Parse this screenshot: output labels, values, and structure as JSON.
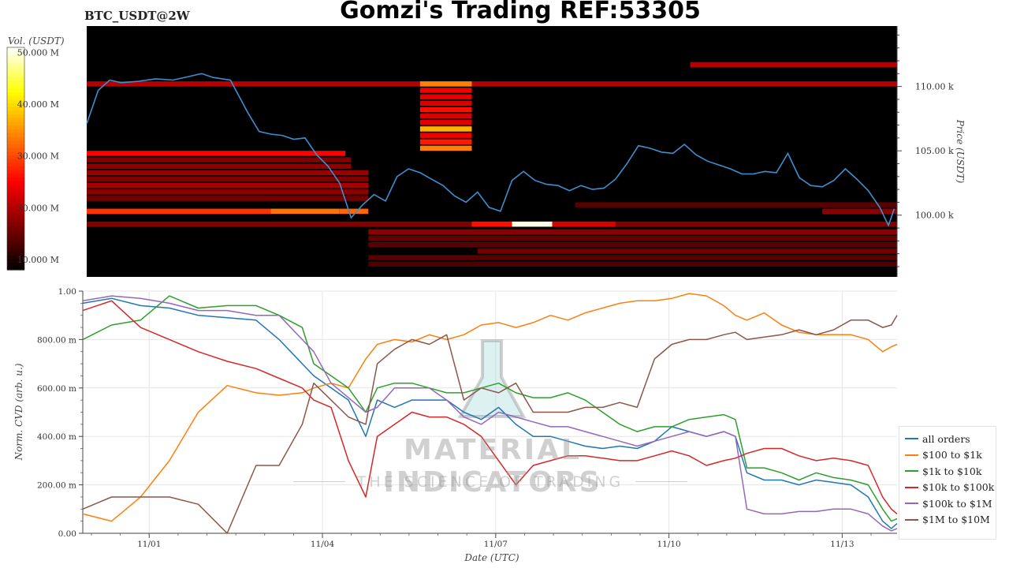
{
  "header": {
    "pair": "BTC_USDT@2W",
    "title": "Gomzi's Trading REF:53305"
  },
  "watermark": {
    "title": "MATERIAL INDICATORS",
    "subtitle": "THE SCIENCE OF TRADING"
  },
  "chart_data": [
    {
      "type": "heatmap",
      "title": "Gomzi's Trading REF:53305",
      "ylabel": "Price (USDT)",
      "colorbar_label": "Vol. (USDT)",
      "colorbar_ticks": [
        "10.000 M",
        "20.000 M",
        "30.000 M",
        "40.000 M",
        "50.000 M"
      ],
      "colorbar_range": [
        8000000,
        51000000
      ],
      "price_ticks": [
        "100.00 k",
        "105.00 k",
        "110.00 k"
      ],
      "y_range": [
        95200,
        114700
      ],
      "x_range": [
        0,
        14.1
      ],
      "price_line": {
        "color": "#3d8fd0",
        "x": [
          0,
          0.2,
          0.4,
          0.6,
          0.9,
          1.2,
          1.5,
          1.8,
          2.0,
          2.2,
          2.5,
          2.8,
          3.0,
          3.2,
          3.4,
          3.6,
          3.8,
          4.0,
          4.2,
          4.4,
          4.6,
          4.8,
          5.0,
          5.2,
          5.4,
          5.6,
          5.8,
          6.0,
          6.2,
          6.4,
          6.6,
          6.8,
          7.0,
          7.2,
          7.4,
          7.6,
          7.8,
          8.0,
          8.2,
          8.4,
          8.6,
          8.8,
          9.0,
          9.2,
          9.4,
          9.6,
          9.8,
          10.0,
          10.2,
          10.4,
          10.6,
          10.8,
          11.0,
          11.2,
          11.4,
          11.6,
          11.8,
          12.0,
          12.2,
          12.4,
          12.6,
          12.8,
          13.0,
          13.2,
          13.4,
          13.6,
          13.8,
          13.95,
          14.05
        ],
        "y": [
          107100,
          109700,
          110500,
          110300,
          110400,
          110600,
          110500,
          110800,
          111000,
          110700,
          110500,
          108000,
          106500,
          106300,
          106200,
          105900,
          106000,
          104700,
          103800,
          102500,
          99800,
          100800,
          101600,
          101100,
          103000,
          103600,
          103300,
          102800,
          102300,
          101500,
          101000,
          101800,
          100600,
          100300,
          102700,
          103400,
          102700,
          102400,
          102300,
          101900,
          102300,
          102000,
          102100,
          102800,
          104000,
          105400,
          105200,
          104900,
          104800,
          105500,
          104700,
          104200,
          103900,
          103600,
          103200,
          103200,
          103400,
          103300,
          104800,
          102900,
          102300,
          102200,
          102700,
          103600,
          102800,
          101900,
          100600,
          99200,
          100500
        ]
      },
      "bands": [
        {
          "price": 110200,
          "x0": 0,
          "x1": 14.1,
          "level": 0.28
        },
        {
          "price": 110200,
          "x0": 5.8,
          "x1": 6.7,
          "level": 0.6
        },
        {
          "price": 111700,
          "x0": 10.5,
          "x1": 14.1,
          "level": 0.28
        },
        {
          "price": 109700,
          "x0": 5.8,
          "x1": 6.7,
          "level": 0.38
        },
        {
          "price": 109200,
          "x0": 5.8,
          "x1": 6.7,
          "level": 0.36
        },
        {
          "price": 108700,
          "x0": 5.8,
          "x1": 6.7,
          "level": 0.34
        },
        {
          "price": 108200,
          "x0": 5.8,
          "x1": 6.7,
          "level": 0.42
        },
        {
          "price": 107700,
          "x0": 5.8,
          "x1": 6.7,
          "level": 0.34
        },
        {
          "price": 107200,
          "x0": 5.8,
          "x1": 6.7,
          "level": 0.36
        },
        {
          "price": 106700,
          "x0": 5.8,
          "x1": 6.7,
          "level": 0.68
        },
        {
          "price": 106200,
          "x0": 5.8,
          "x1": 6.7,
          "level": 0.38
        },
        {
          "price": 105700,
          "x0": 5.8,
          "x1": 6.7,
          "level": 0.44
        },
        {
          "price": 105200,
          "x0": 5.8,
          "x1": 6.7,
          "level": 0.6
        },
        {
          "price": 104800,
          "x0": 0,
          "x1": 4.5,
          "level": 0.4
        },
        {
          "price": 104300,
          "x0": 0,
          "x1": 4.6,
          "level": 0.2
        },
        {
          "price": 103800,
          "x0": 0,
          "x1": 4.6,
          "level": 0.22
        },
        {
          "price": 103300,
          "x0": 0,
          "x1": 4.9,
          "level": 0.24
        },
        {
          "price": 102800,
          "x0": 0,
          "x1": 4.9,
          "level": 0.2
        },
        {
          "price": 102300,
          "x0": 0,
          "x1": 4.9,
          "level": 0.26
        },
        {
          "price": 101800,
          "x0": 0,
          "x1": 4.9,
          "level": 0.22
        },
        {
          "price": 101300,
          "x0": 0,
          "x1": 4.9,
          "level": 0.18
        },
        {
          "price": 100300,
          "x0": 0,
          "x1": 3.2,
          "level": 0.48
        },
        {
          "price": 100300,
          "x0": 3.2,
          "x1": 4.4,
          "level": 0.58
        },
        {
          "price": 100300,
          "x0": 4.4,
          "x1": 4.9,
          "level": 0.56
        },
        {
          "price": 100800,
          "x0": 8.5,
          "x1": 14.1,
          "level": 0.14
        },
        {
          "price": 100300,
          "x0": 12.8,
          "x1": 14.1,
          "level": 0.22
        },
        {
          "price": 99300,
          "x0": 0,
          "x1": 14.1,
          "level": 0.2
        },
        {
          "price": 99300,
          "x0": 6.7,
          "x1": 7.4,
          "level": 0.42
        },
        {
          "price": 99300,
          "x0": 7.4,
          "x1": 8.1,
          "level": 0.98
        },
        {
          "price": 99300,
          "x0": 8.1,
          "x1": 9.2,
          "level": 0.34
        },
        {
          "price": 98700,
          "x0": 4.9,
          "x1": 14.1,
          "level": 0.22
        },
        {
          "price": 98200,
          "x0": 4.9,
          "x1": 14.1,
          "level": 0.16
        },
        {
          "price": 97700,
          "x0": 4.9,
          "x1": 14.1,
          "level": 0.14
        },
        {
          "price": 97200,
          "x0": 6.8,
          "x1": 14.1,
          "level": 0.18
        },
        {
          "price": 96700,
          "x0": 4.9,
          "x1": 14.1,
          "level": 0.14
        },
        {
          "price": 96200,
          "x0": 4.9,
          "x1": 14.1,
          "level": 0.12
        }
      ]
    },
    {
      "type": "line",
      "xlabel": "Date (UTC)",
      "ylabel": "Norm. CVD (arb. u.)",
      "ylim": [
        0,
        1
      ],
      "xlim": [
        0,
        14.1
      ],
      "y_ticks": [
        "0.00",
        "200.00 m",
        "400.00 m",
        "600.00 m",
        "800.00 m",
        "1.00"
      ],
      "x_ticks": [
        {
          "x": 1.15,
          "label": "11/01"
        },
        {
          "x": 4.15,
          "label": "11/04"
        },
        {
          "x": 7.15,
          "label": "11/07"
        },
        {
          "x": 10.15,
          "label": "11/10"
        },
        {
          "x": 13.15,
          "label": "11/13"
        }
      ],
      "legend_position": "right",
      "x": [
        0,
        0.5,
        1.0,
        1.5,
        2.0,
        2.5,
        3.0,
        3.4,
        3.8,
        4.0,
        4.3,
        4.6,
        4.9,
        5.1,
        5.4,
        5.7,
        6.0,
        6.3,
        6.6,
        6.9,
        7.2,
        7.5,
        7.8,
        8.1,
        8.4,
        8.7,
        9.0,
        9.3,
        9.6,
        9.9,
        10.2,
        10.5,
        10.8,
        11.1,
        11.3,
        11.5,
        11.8,
        12.1,
        12.4,
        12.7,
        13.0,
        13.3,
        13.6,
        13.85,
        14.0,
        14.1
      ],
      "series": [
        {
          "name": "all orders",
          "color": "#1f77b4",
          "values": [
            0.95,
            0.97,
            0.94,
            0.93,
            0.9,
            0.89,
            0.88,
            0.8,
            0.7,
            0.65,
            0.6,
            0.55,
            0.4,
            0.55,
            0.52,
            0.55,
            0.55,
            0.55,
            0.5,
            0.47,
            0.52,
            0.45,
            0.4,
            0.4,
            0.38,
            0.36,
            0.35,
            0.36,
            0.35,
            0.38,
            0.44,
            0.42,
            0.4,
            0.42,
            0.4,
            0.25,
            0.22,
            0.22,
            0.2,
            0.22,
            0.21,
            0.2,
            0.15,
            0.05,
            0.02,
            0.04
          ]
        },
        {
          "name": "$100 to $1k",
          "color": "#ff7f0e",
          "values": [
            0.08,
            0.05,
            0.15,
            0.3,
            0.5,
            0.61,
            0.58,
            0.57,
            0.58,
            0.6,
            0.62,
            0.6,
            0.72,
            0.78,
            0.8,
            0.79,
            0.82,
            0.8,
            0.82,
            0.86,
            0.87,
            0.85,
            0.87,
            0.9,
            0.88,
            0.91,
            0.93,
            0.95,
            0.96,
            0.96,
            0.97,
            0.99,
            0.98,
            0.94,
            0.9,
            0.88,
            0.91,
            0.86,
            0.83,
            0.82,
            0.82,
            0.82,
            0.8,
            0.75,
            0.77,
            0.78
          ]
        },
        {
          "name": "$1k to $10k",
          "color": "#2ca02c",
          "values": [
            0.8,
            0.86,
            0.88,
            0.98,
            0.93,
            0.94,
            0.94,
            0.9,
            0.85,
            0.7,
            0.65,
            0.6,
            0.5,
            0.6,
            0.62,
            0.62,
            0.6,
            0.58,
            0.58,
            0.6,
            0.62,
            0.58,
            0.56,
            0.56,
            0.58,
            0.55,
            0.5,
            0.45,
            0.42,
            0.44,
            0.44,
            0.47,
            0.48,
            0.49,
            0.47,
            0.27,
            0.27,
            0.25,
            0.22,
            0.25,
            0.23,
            0.22,
            0.2,
            0.1,
            0.05,
            0.06
          ]
        },
        {
          "name": "$10k to $100k",
          "color": "#d62728",
          "values": [
            0.92,
            0.96,
            0.85,
            0.8,
            0.75,
            0.71,
            0.68,
            0.64,
            0.6,
            0.55,
            0.52,
            0.3,
            0.15,
            0.4,
            0.45,
            0.5,
            0.48,
            0.48,
            0.45,
            0.4,
            0.3,
            0.2,
            0.28,
            0.3,
            0.32,
            0.32,
            0.31,
            0.3,
            0.3,
            0.32,
            0.34,
            0.32,
            0.28,
            0.3,
            0.31,
            0.33,
            0.35,
            0.35,
            0.32,
            0.3,
            0.31,
            0.3,
            0.28,
            0.15,
            0.1,
            0.08
          ]
        },
        {
          "name": "$100k to $1M",
          "color": "#9467bd",
          "values": [
            0.96,
            0.98,
            0.97,
            0.95,
            0.92,
            0.92,
            0.9,
            0.9,
            0.8,
            0.75,
            0.62,
            0.56,
            0.5,
            0.52,
            0.6,
            0.6,
            0.6,
            0.55,
            0.48,
            0.45,
            0.5,
            0.48,
            0.46,
            0.44,
            0.44,
            0.42,
            0.4,
            0.38,
            0.36,
            0.38,
            0.4,
            0.42,
            0.4,
            0.42,
            0.4,
            0.1,
            0.08,
            0.08,
            0.09,
            0.09,
            0.1,
            0.1,
            0.08,
            0.03,
            0.01,
            0.02
          ]
        },
        {
          "name": "$1M to $10M",
          "color": "#8c564b",
          "values": [
            0.1,
            0.15,
            0.15,
            0.15,
            0.12,
            0.0,
            0.28,
            0.28,
            0.45,
            0.62,
            0.55,
            0.48,
            0.45,
            0.7,
            0.76,
            0.8,
            0.78,
            0.82,
            0.55,
            0.6,
            0.58,
            0.62,
            0.5,
            0.5,
            0.5,
            0.52,
            0.52,
            0.54,
            0.52,
            0.72,
            0.78,
            0.8,
            0.8,
            0.82,
            0.83,
            0.8,
            0.81,
            0.82,
            0.84,
            0.82,
            0.84,
            0.88,
            0.88,
            0.85,
            0.86,
            0.9
          ]
        }
      ]
    }
  ]
}
